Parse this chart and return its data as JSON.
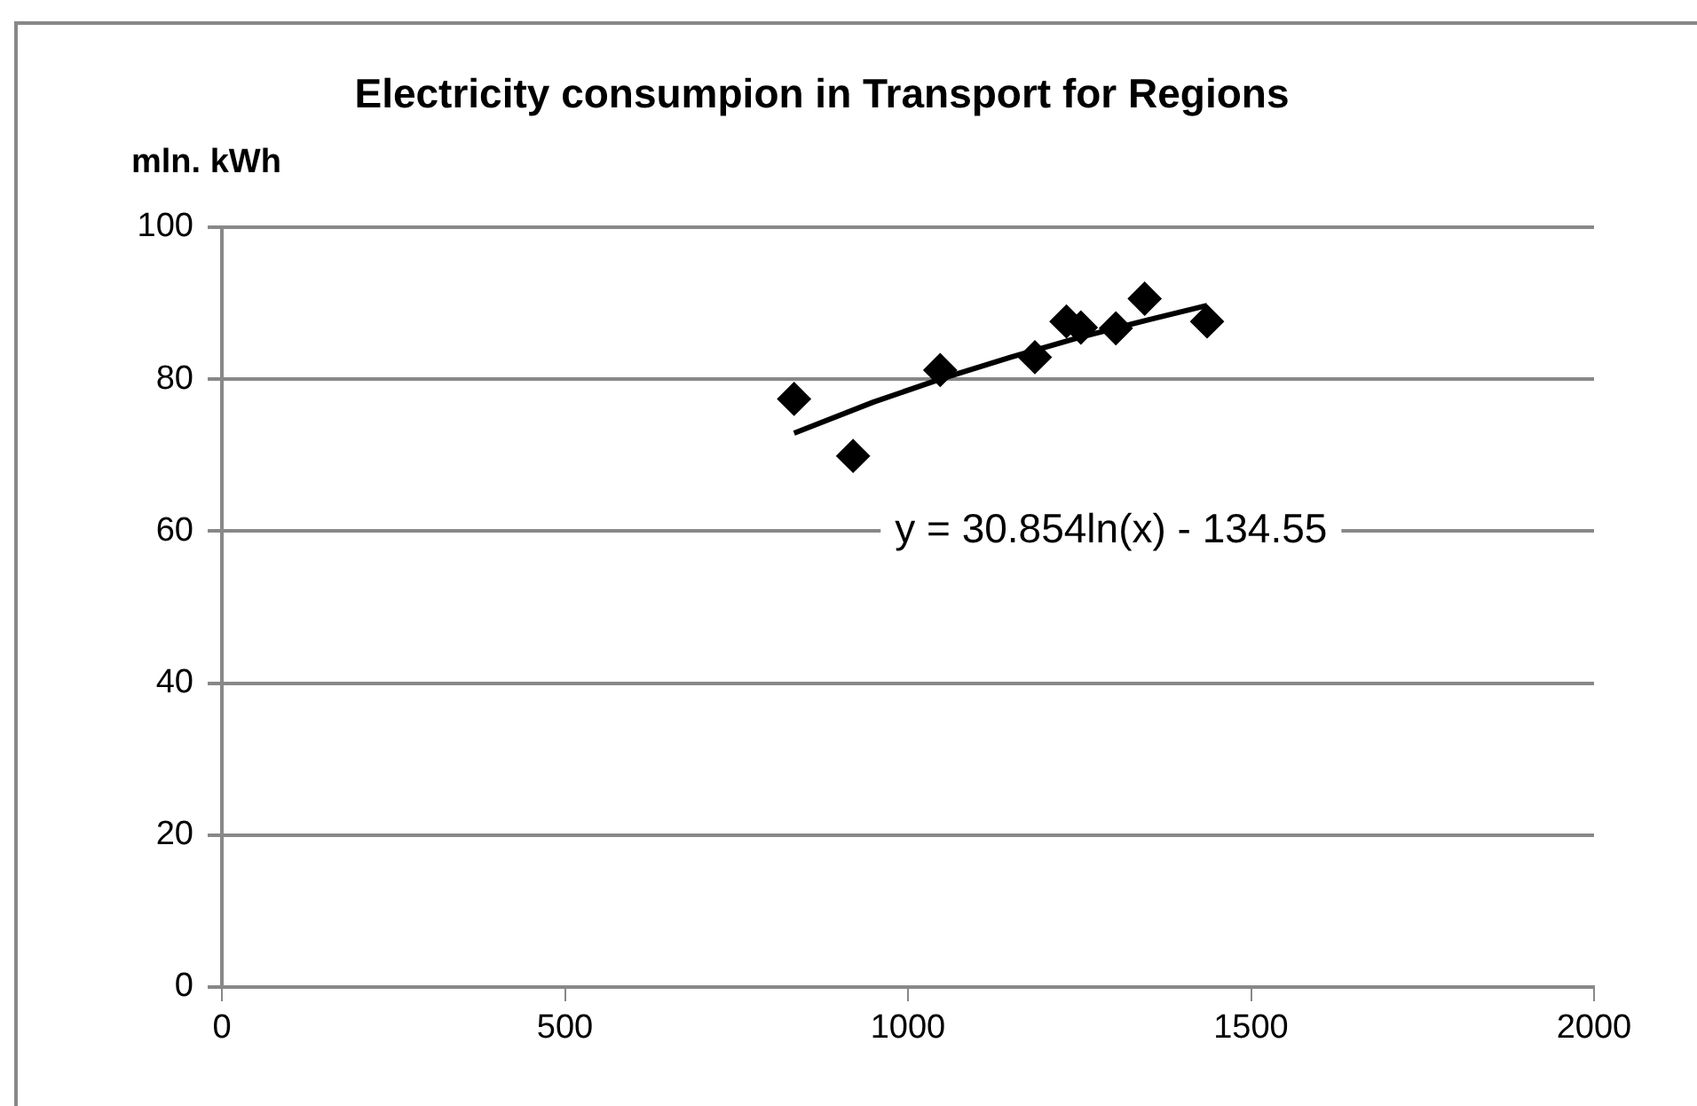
{
  "chart_data": {
    "type": "scatter",
    "title": "Electricity consumpion in Transport for Regions",
    "ylabel": "mln. kWh",
    "series": [
      {
        "type": "scatter",
        "color": "#000000",
        "marker": "diamond",
        "x": [
          834,
          920,
          1047,
          1185,
          1231,
          1252,
          1303,
          1345,
          1436
        ],
        "values": [
          77.4,
          69.9,
          81.2,
          82.9,
          87.6,
          86.8,
          86.7,
          90.6,
          87.6
        ]
      },
      {
        "type": "line",
        "color": "#000000",
        "marker": "none",
        "x": [
          834,
          950,
          1050,
          1150,
          1250,
          1350,
          1436
        ],
        "values": [
          72.9,
          77.0,
          80.1,
          82.9,
          85.5,
          87.8,
          89.7
        ]
      }
    ],
    "annotations": [
      "y = 30.854ln(x) - 134.55"
    ],
    "xlim": [
      0,
      2000
    ],
    "xticks": [
      0,
      500,
      1000,
      1500,
      2000
    ],
    "ylim": [
      0,
      100
    ],
    "yticks": [
      0,
      20,
      40,
      60,
      80,
      100
    ],
    "grid": "y",
    "legend": false
  }
}
